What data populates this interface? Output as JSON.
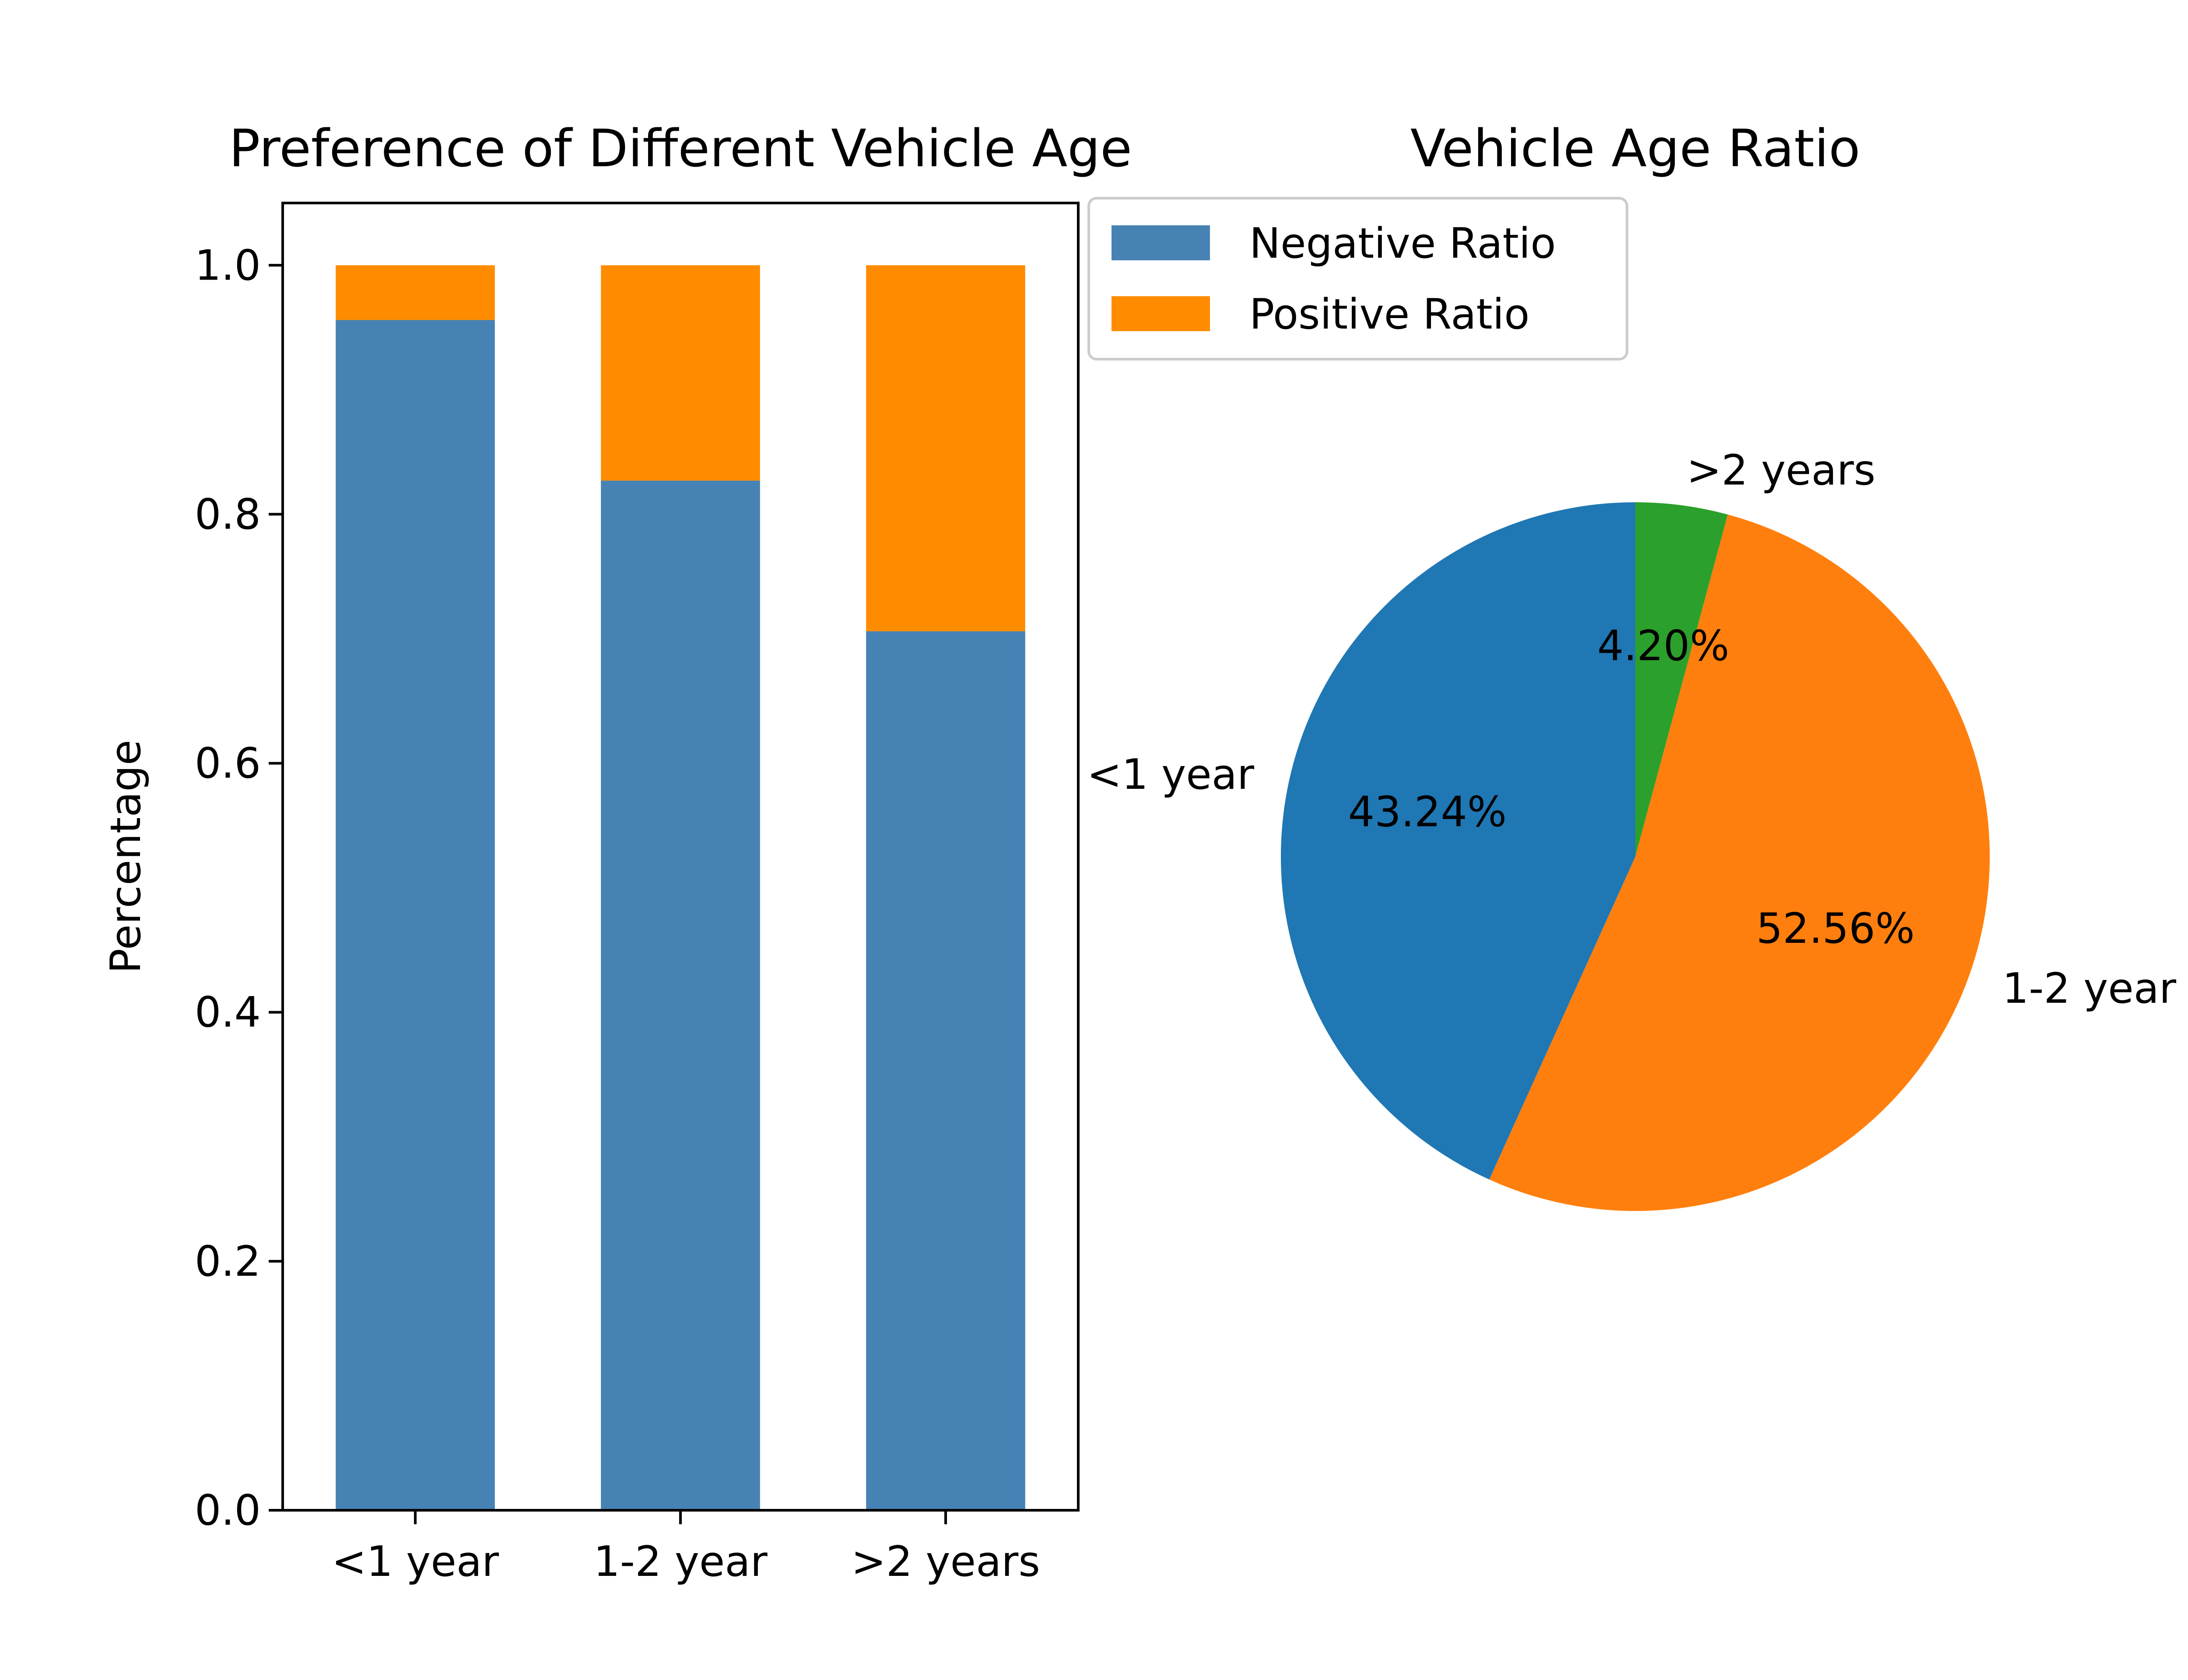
{
  "chart_data": [
    {
      "type": "bar",
      "stacked": true,
      "title": "Preference of Different Vehicle Age",
      "xlabel": "",
      "ylabel": "Percentage",
      "ylim": [
        0,
        1.05
      ],
      "yticks": [
        "0.0",
        "0.2",
        "0.4",
        "0.6",
        "0.8",
        "1.0"
      ],
      "categories": [
        "<1 year",
        "1-2 year",
        ">2 years"
      ],
      "series": [
        {
          "name": "Negative Ratio",
          "color": "#4682b4",
          "values": [
            0.956,
            0.827,
            0.706
          ]
        },
        {
          "name": "Positive Ratio",
          "color": "#ff8c00",
          "values": [
            0.044,
            0.173,
            0.294
          ]
        }
      ],
      "grid": false,
      "legend": "upper-left, outside right of plot"
    },
    {
      "type": "pie",
      "title": "Vehicle Age Ratio",
      "slices": [
        {
          "label": ">2 years",
          "value": 4.2,
          "pct_label": "4.20%",
          "color": "#2ca02c"
        },
        {
          "label": "1-2 year",
          "value": 52.56,
          "pct_label": "52.56%",
          "color": "#ff7f0e"
        },
        {
          "label": "<1 year",
          "value": 43.24,
          "pct_label": "43.24%",
          "color": "#1f77b4"
        }
      ]
    }
  ]
}
